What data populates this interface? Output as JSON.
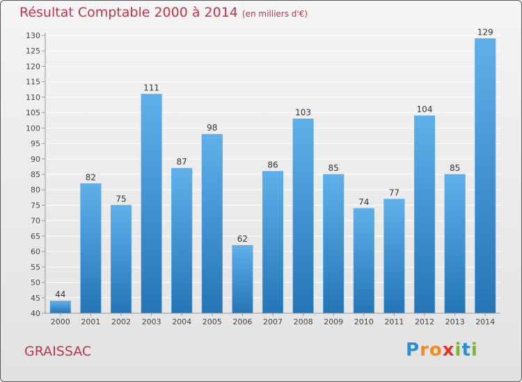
{
  "title": "Résultat Comptable 2000 à 2014",
  "subtitle": "(en milliers d'€)",
  "commune": "GRAISSAC",
  "logo": {
    "text": "Proxiti",
    "letters": [
      "P",
      "r",
      "o",
      "x",
      "i",
      "t",
      "i"
    ],
    "colors": [
      "#2a8fd6",
      "#f28b1a",
      "#f28b1a",
      "#e2332a",
      "#79b829",
      "#2a8fd6",
      "#79b829"
    ]
  },
  "colors": {
    "title": "#c0334a",
    "bar_top": "#5fb0ea",
    "bar_bottom": "#2475b6"
  },
  "chart_data": {
    "type": "bar",
    "title": "Résultat Comptable 2000 à 2014",
    "subtitle": "(en milliers d'€)",
    "xlabel": "",
    "ylabel": "",
    "categories": [
      "2000",
      "2001",
      "2002",
      "2003",
      "2004",
      "2005",
      "2006",
      "2007",
      "2008",
      "2009",
      "2010",
      "2011",
      "2012",
      "2013",
      "2014"
    ],
    "values": [
      44,
      82,
      75,
      111,
      87,
      98,
      62,
      86,
      103,
      85,
      74,
      77,
      104,
      85,
      129
    ],
    "ylim": [
      40,
      130
    ],
    "ytick_step": 5,
    "grid": true,
    "data_labels": true
  }
}
